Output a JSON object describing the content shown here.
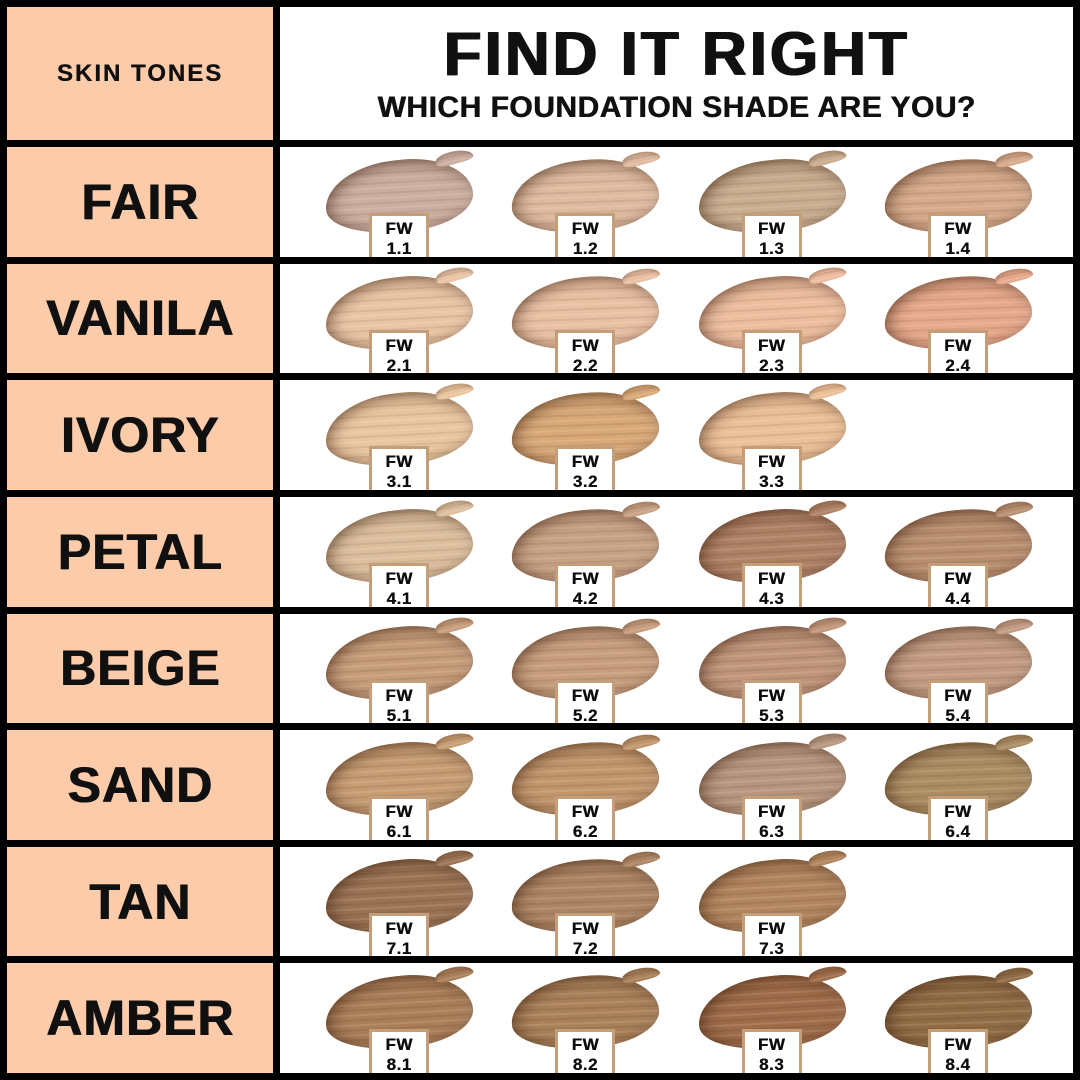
{
  "chart_data": {
    "type": "table",
    "title": "FIND IT RIGHT",
    "subtitle": "WHICH FOUNDATION SHADE ARE YOU?",
    "corner_label": "SKIN TONES",
    "columns_per_row": 4,
    "rows": [
      {
        "tone": "FAIR",
        "shades": [
          {
            "line1": "FW",
            "line2": "1.1",
            "color": "#CBAEA0"
          },
          {
            "line1": "FW",
            "line2": "1.2",
            "color": "#DEBA9F"
          },
          {
            "line1": "FW",
            "line2": "1.3",
            "color": "#C8AD8F"
          },
          {
            "line1": "FW",
            "line2": "1.4",
            "color": "#D5A98A"
          }
        ]
      },
      {
        "tone": "VANILA",
        "shades": [
          {
            "line1": "FW",
            "line2": "2.1",
            "color": "#E9C5A4"
          },
          {
            "line1": "FW",
            "line2": "2.2",
            "color": "#EAC0A3"
          },
          {
            "line1": "FW",
            "line2": "2.3",
            "color": "#EDBD9E"
          },
          {
            "line1": "FW",
            "line2": "2.4",
            "color": "#E7A98B"
          }
        ]
      },
      {
        "tone": "IVORY",
        "shades": [
          {
            "line1": "FW",
            "line2": "3.1",
            "color": "#EAC6A0"
          },
          {
            "line1": "FW",
            "line2": "3.2",
            "color": "#D8A877"
          },
          {
            "line1": "FW",
            "line2": "3.3",
            "color": "#EBBF97"
          }
        ]
      },
      {
        "tone": "PETAL",
        "shades": [
          {
            "line1": "FW",
            "line2": "4.1",
            "color": "#DCBE9D"
          },
          {
            "line1": "FW",
            "line2": "4.2",
            "color": "#C7A184"
          },
          {
            "line1": "FW",
            "line2": "4.3",
            "color": "#AF8165"
          },
          {
            "line1": "FW",
            "line2": "4.4",
            "color": "#B98E6F"
          }
        ]
      },
      {
        "tone": "BEIGE",
        "shades": [
          {
            "line1": "FW",
            "line2": "5.1",
            "color": "#C69C79"
          },
          {
            "line1": "FW",
            "line2": "5.2",
            "color": "#C79D7D"
          },
          {
            "line1": "FW",
            "line2": "5.3",
            "color": "#C0957A"
          },
          {
            "line1": "FW",
            "line2": "5.4",
            "color": "#C39B83"
          }
        ]
      },
      {
        "tone": "SAND",
        "shades": [
          {
            "line1": "FW",
            "line2": "6.1",
            "color": "#C69C73"
          },
          {
            "line1": "FW",
            "line2": "6.2",
            "color": "#C2966C"
          },
          {
            "line1": "FW",
            "line2": "6.3",
            "color": "#B7967F"
          },
          {
            "line1": "FW",
            "line2": "6.4",
            "color": "#AA8D62"
          }
        ]
      },
      {
        "tone": "TAN",
        "shades": [
          {
            "line1": "FW",
            "line2": "7.1",
            "color": "#9B7354"
          },
          {
            "line1": "FW",
            "line2": "7.2",
            "color": "#AD8564"
          },
          {
            "line1": "FW",
            "line2": "7.3",
            "color": "#B2855E"
          }
        ]
      },
      {
        "tone": "AMBER",
        "shades": [
          {
            "line1": "FW",
            "line2": "8.1",
            "color": "#AA7E58"
          },
          {
            "line1": "FW",
            "line2": "8.2",
            "color": "#A98059"
          },
          {
            "line1": "FW",
            "line2": "8.3",
            "color": "#9F6C49"
          },
          {
            "line1": "FW",
            "line2": "8.4",
            "color": "#906C45"
          }
        ]
      }
    ]
  },
  "theme": {
    "peach": "#FCCBAA",
    "grid_black": "#000000",
    "cell_white": "#FFFFFF",
    "swatch_label_border": "#C49D79",
    "text_color": "#101010"
  }
}
